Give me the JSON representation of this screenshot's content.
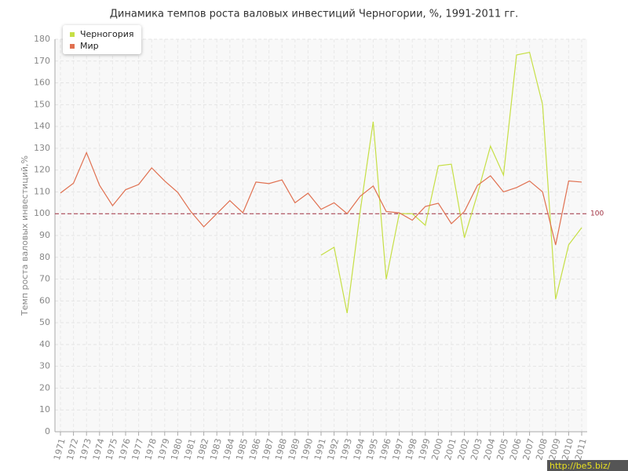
{
  "chart_data": {
    "type": "line",
    "title": "Динамика темпов роста валовых инвестиций Черногории, %, 1991-2011 гг.",
    "y_label": "Темп роста валовых инвестиций,%",
    "categories": [
      "1971",
      "1972",
      "1973",
      "1974",
      "1975",
      "1976",
      "1977",
      "1978",
      "1979",
      "1980",
      "1981",
      "1982",
      "1983",
      "1984",
      "1985",
      "1986",
      "1987",
      "1988",
      "1989",
      "1990",
      "1991",
      "1992",
      "1993",
      "1994",
      "1995",
      "1996",
      "1997",
      "1998",
      "1999",
      "2000",
      "2001",
      "2002",
      "2003",
      "2004",
      "2005",
      "2006",
      "2007",
      "2008",
      "2009",
      "2010",
      "2011"
    ],
    "series": [
      {
        "name": "Черногория",
        "color": "#c6df45",
        "values": [
          null,
          null,
          null,
          null,
          null,
          null,
          null,
          null,
          null,
          null,
          null,
          null,
          null,
          null,
          null,
          null,
          null,
          null,
          null,
          null,
          81,
          84.6,
          54.4,
          101,
          142.2,
          70,
          100,
          100,
          94.7,
          122,
          122.7,
          89,
          109,
          131,
          117.7,
          172.8,
          174,
          150,
          60.8,
          85.7,
          93.6
        ]
      },
      {
        "name": "Мир",
        "color": "#e07050",
        "values": [
          109.5,
          114,
          128,
          113,
          103.7,
          111,
          113.4,
          121,
          115,
          109.8,
          101,
          94,
          100,
          106,
          100.4,
          114.5,
          113.8,
          115.5,
          105,
          109.4,
          102,
          105,
          100,
          108,
          112.7,
          101,
          100.4,
          97,
          103.3,
          104.8,
          95.4,
          101,
          113,
          117.4,
          110,
          112,
          115,
          110,
          85.7,
          115,
          114.5
        ]
      }
    ],
    "ylim": [
      0,
      180
    ],
    "yticks": [
      0,
      10,
      20,
      30,
      40,
      50,
      60,
      70,
      80,
      90,
      100,
      110,
      120,
      130,
      140,
      150,
      160,
      170,
      180
    ],
    "grid": true,
    "legend": "top-left",
    "hline": 100,
    "hline_color": "#a03040",
    "watermark": "http://be5.biz/"
  }
}
